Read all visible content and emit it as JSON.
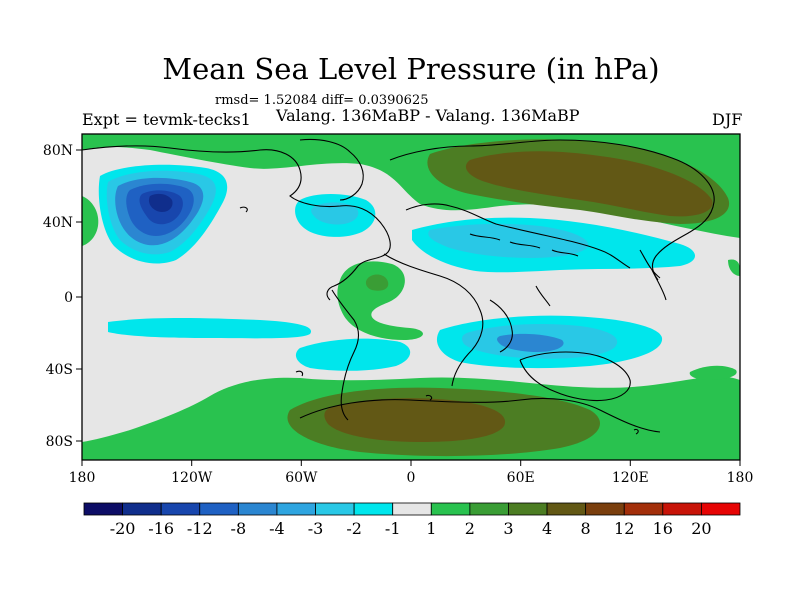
{
  "figure": {
    "title": "Mean Sea Level Pressure (in hPa)",
    "stats": "rmsd= 1.52084 diff= 0.0390625",
    "expt_label": "Expt = tevmk-tecks1",
    "subtitle": "Valang. 136MaBP - Valang. 136MaBP",
    "season": "DJF"
  },
  "map_data": {
    "type": "filled-contour map",
    "variable": "Mean Sea Level Pressure difference",
    "units": "hPa",
    "projection": "cylindrical equidistant",
    "lon_range": [
      -180,
      180
    ],
    "lat_range": [
      -90,
      90
    ],
    "lon_ticks": [
      {
        "value": -180,
        "label": "180"
      },
      {
        "value": -120,
        "label": "120W"
      },
      {
        "value": -60,
        "label": "60W"
      },
      {
        "value": 0,
        "label": "0"
      },
      {
        "value": 60,
        "label": "60E"
      },
      {
        "value": 120,
        "label": "120E"
      },
      {
        "value": 180,
        "label": "180"
      }
    ],
    "lat_ticks": [
      {
        "value": 80,
        "label": "80N"
      },
      {
        "value": 40,
        "label": "40N"
      },
      {
        "value": 0,
        "label": "0"
      },
      {
        "value": -40,
        "label": "40S"
      },
      {
        "value": -80,
        "label": "80S"
      }
    ],
    "colorbar": {
      "labels": [
        "-20",
        "-16",
        "-12",
        "-8",
        "-4",
        "-3",
        "-2",
        "-1",
        "1",
        "2",
        "3",
        "4",
        "8",
        "12",
        "16",
        "20"
      ],
      "colors": [
        "#0d0d66",
        "#102e8c",
        "#1846ad",
        "#1f61c3",
        "#2b86d1",
        "#2ea5e0",
        "#29c8e6",
        "#00e6ec",
        "#e6e6e6",
        "#29c24f",
        "#3a9d35",
        "#4c7d23",
        "#625815",
        "#7a3f0e",
        "#a32f0a",
        "#c81408",
        "#e60404"
      ]
    },
    "regions": [
      {
        "name": "green-high-north-america-north",
        "level_color": "#29c24f"
      },
      {
        "name": "brown-high-eurasia",
        "level_color": "#625815"
      },
      {
        "name": "blue-low-north-pacific",
        "level_color": "#1846ad"
      },
      {
        "name": "cyan-low-north-atlantic",
        "level_color": "#29c8e6"
      },
      {
        "name": "cyan-low-tethys",
        "level_color": "#29c8e6"
      },
      {
        "name": "cyan-low-south-indian",
        "level_color": "#29c8e6"
      },
      {
        "name": "brown-high-antarctica",
        "level_color": "#625815"
      }
    ]
  }
}
